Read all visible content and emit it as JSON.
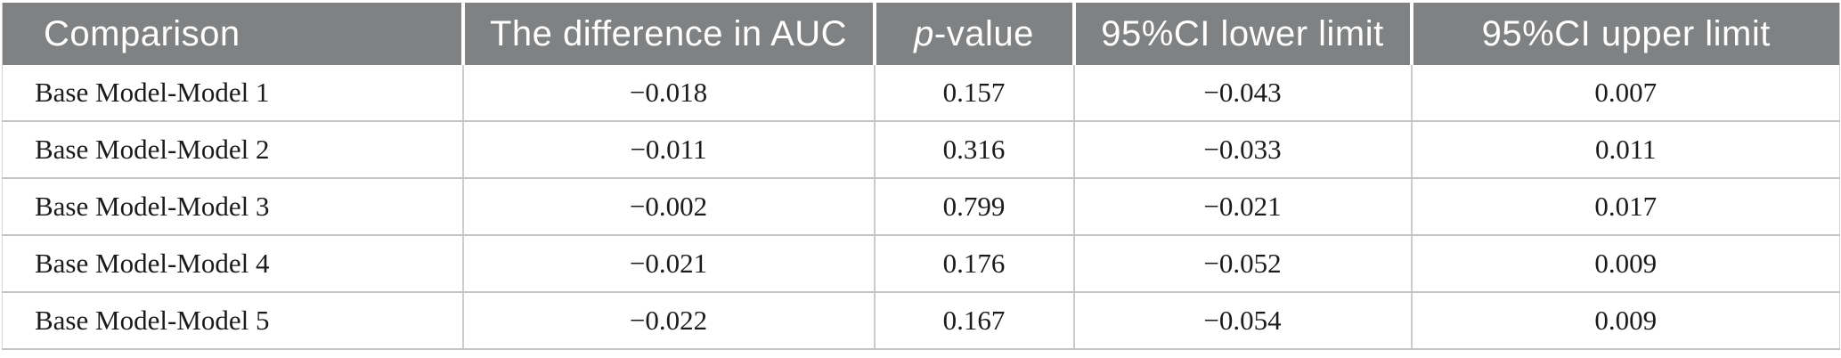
{
  "colors": {
    "header_background": "#7f8182",
    "header_text": "#ffffff",
    "body_text": "#1b1b1b",
    "row_divider": "#c3c3c3",
    "header_cell_divider": "#ffffff"
  },
  "table": {
    "header": {
      "comparison": "Comparison",
      "auc_difference": "The difference in AUC",
      "p_value_italic": "p",
      "p_value_rest": "-value",
      "ci_lower": "95%CI lower limit",
      "ci_upper": "95%CI upper limit"
    },
    "rows": [
      {
        "comparison": "Base Model-Model 1",
        "auc_difference": "−0.018",
        "p_value": "0.157",
        "ci_lower": "−0.043",
        "ci_upper": "0.007"
      },
      {
        "comparison": "Base Model-Model 2",
        "auc_difference": "−0.011",
        "p_value": "0.316",
        "ci_lower": "−0.033",
        "ci_upper": "0.011"
      },
      {
        "comparison": "Base Model-Model 3",
        "auc_difference": "−0.002",
        "p_value": "0.799",
        "ci_lower": "−0.021",
        "ci_upper": "0.017"
      },
      {
        "comparison": "Base Model-Model 4",
        "auc_difference": "−0.021",
        "p_value": "0.176",
        "ci_lower": "−0.052",
        "ci_upper": "0.009"
      },
      {
        "comparison": "Base Model-Model 5",
        "auc_difference": "−0.022",
        "p_value": "0.167",
        "ci_lower": "−0.054",
        "ci_upper": "0.009"
      }
    ]
  }
}
